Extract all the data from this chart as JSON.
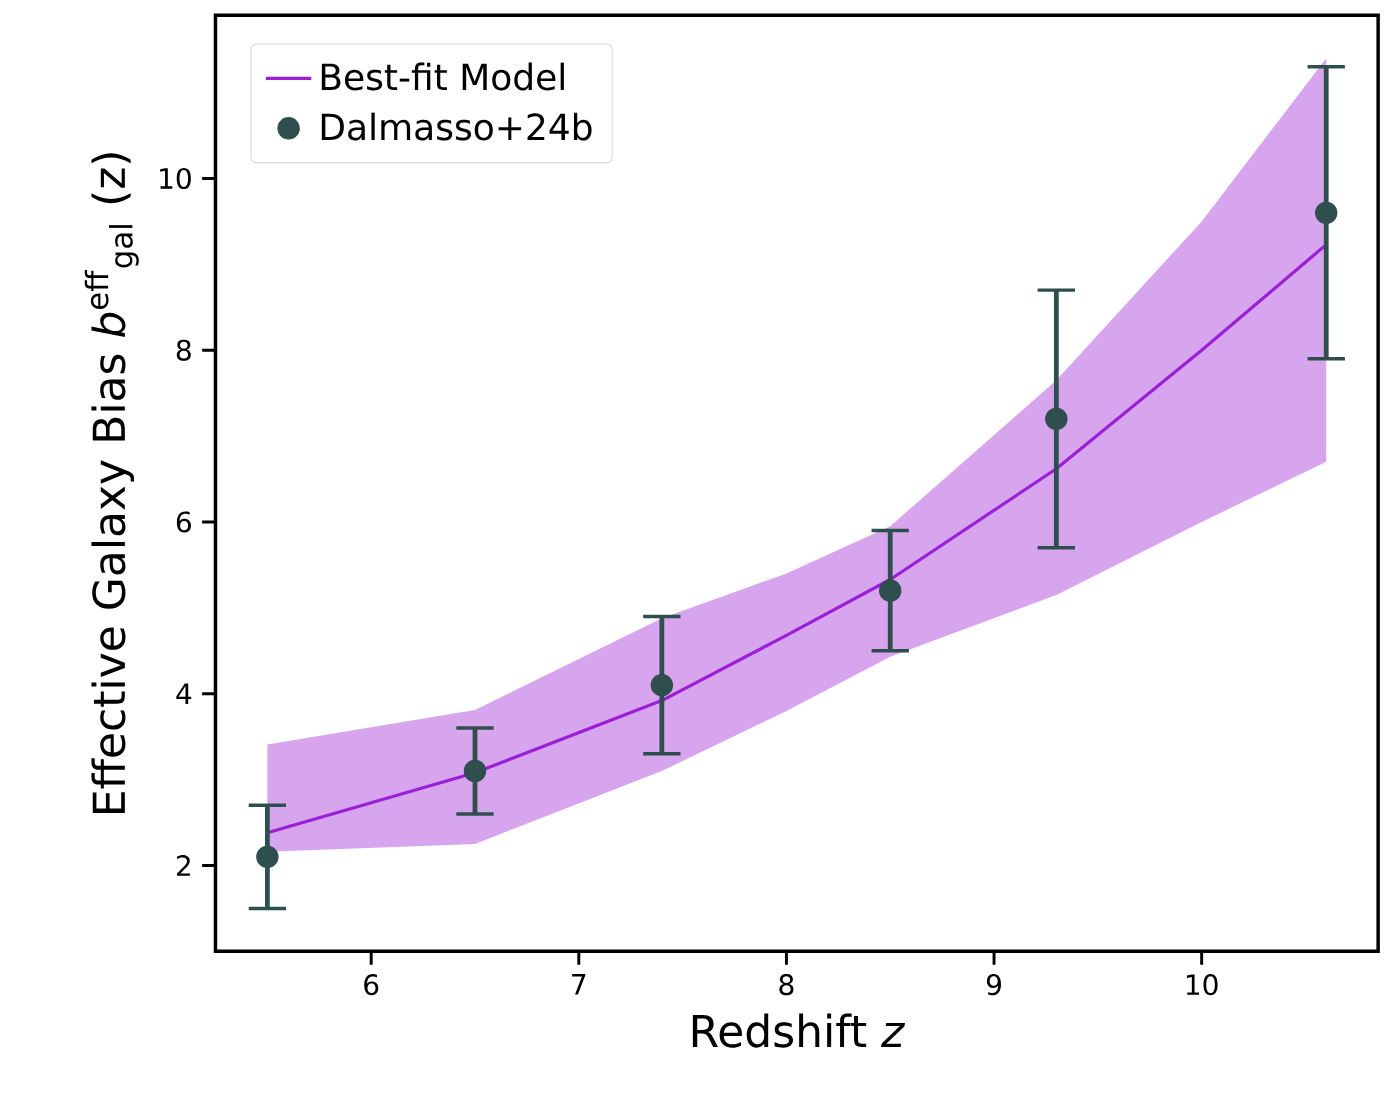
{
  "chart_data": {
    "type": "line",
    "xlabel": "Redshift *z*",
    "ylabel": "Effective Galaxy Bias  *b*$^{eff}$$_{gal}$ (z)",
    "xlim": [
      5.25,
      10.85
    ],
    "ylim": [
      1.0,
      11.9
    ],
    "xticks": [
      6,
      7,
      8,
      9,
      10
    ],
    "yticks": [
      2,
      4,
      6,
      8,
      10
    ],
    "legend": "top left",
    "series": [
      {
        "name": "Best-fit Model",
        "color": "#9b1fd4",
        "marker": "none",
        "x": [
          5.5,
          6.5,
          7.4,
          8.0,
          8.5,
          9.3,
          10.0,
          10.6
        ],
        "values": [
          2.38,
          3.08,
          3.92,
          4.68,
          5.33,
          6.62,
          8.0,
          9.23
        ],
        "lower": [
          2.16,
          2.25,
          3.1,
          3.8,
          4.43,
          5.15,
          6.0,
          6.7
        ],
        "upper": [
          3.41,
          3.81,
          4.88,
          5.4,
          5.95,
          7.65,
          9.5,
          11.4
        ]
      },
      {
        "name": "Dalmasso+24b",
        "type": "scatter",
        "color": "#2f4f4f",
        "marker": "circle",
        "x": [
          5.5,
          6.5,
          7.4,
          8.5,
          9.3,
          10.6
        ],
        "values": [
          2.1,
          3.1,
          4.1,
          5.2,
          7.2,
          9.6
        ],
        "errors": [
          0.6,
          0.5,
          0.8,
          0.7,
          1.5,
          1.7
        ]
      }
    ]
  }
}
